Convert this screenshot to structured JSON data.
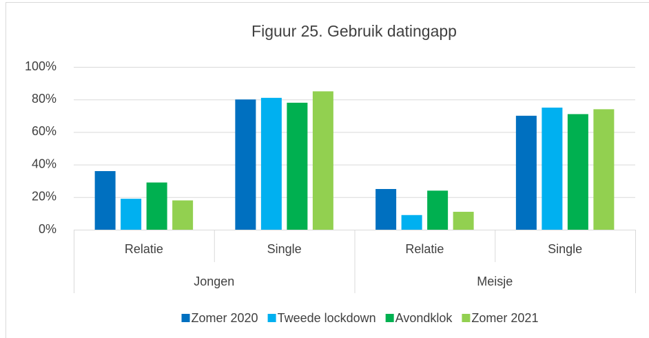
{
  "chart_data": {
    "type": "bar",
    "title": "Figuur 25. Gebruik datingapp",
    "categories": [
      "Relatie",
      "Single",
      "Relatie",
      "Single"
    ],
    "category_groups": [
      "Jongen",
      "Meisje"
    ],
    "series": [
      {
        "name": "Zomer 2020",
        "color": "#0070c0",
        "values": [
          36,
          80,
          25,
          70
        ]
      },
      {
        "name": "Tweede lockdown",
        "color": "#00b0f0",
        "values": [
          19,
          81,
          9,
          75
        ]
      },
      {
        "name": "Avondklok",
        "color": "#00b050",
        "values": [
          29,
          78,
          24,
          71
        ]
      },
      {
        "name": "Zomer 2021",
        "color": "#92d050",
        "values": [
          18,
          85,
          11,
          74
        ]
      }
    ],
    "ylim": [
      0,
      100
    ],
    "yticks": [
      {
        "value": 0,
        "label": "0%"
      },
      {
        "value": 20,
        "label": "20%"
      },
      {
        "value": 40,
        "label": "40%"
      },
      {
        "value": 60,
        "label": "60%"
      },
      {
        "value": 80,
        "label": "80%"
      },
      {
        "value": 100,
        "label": "100%"
      }
    ],
    "grid": true,
    "legend": "bottom"
  }
}
